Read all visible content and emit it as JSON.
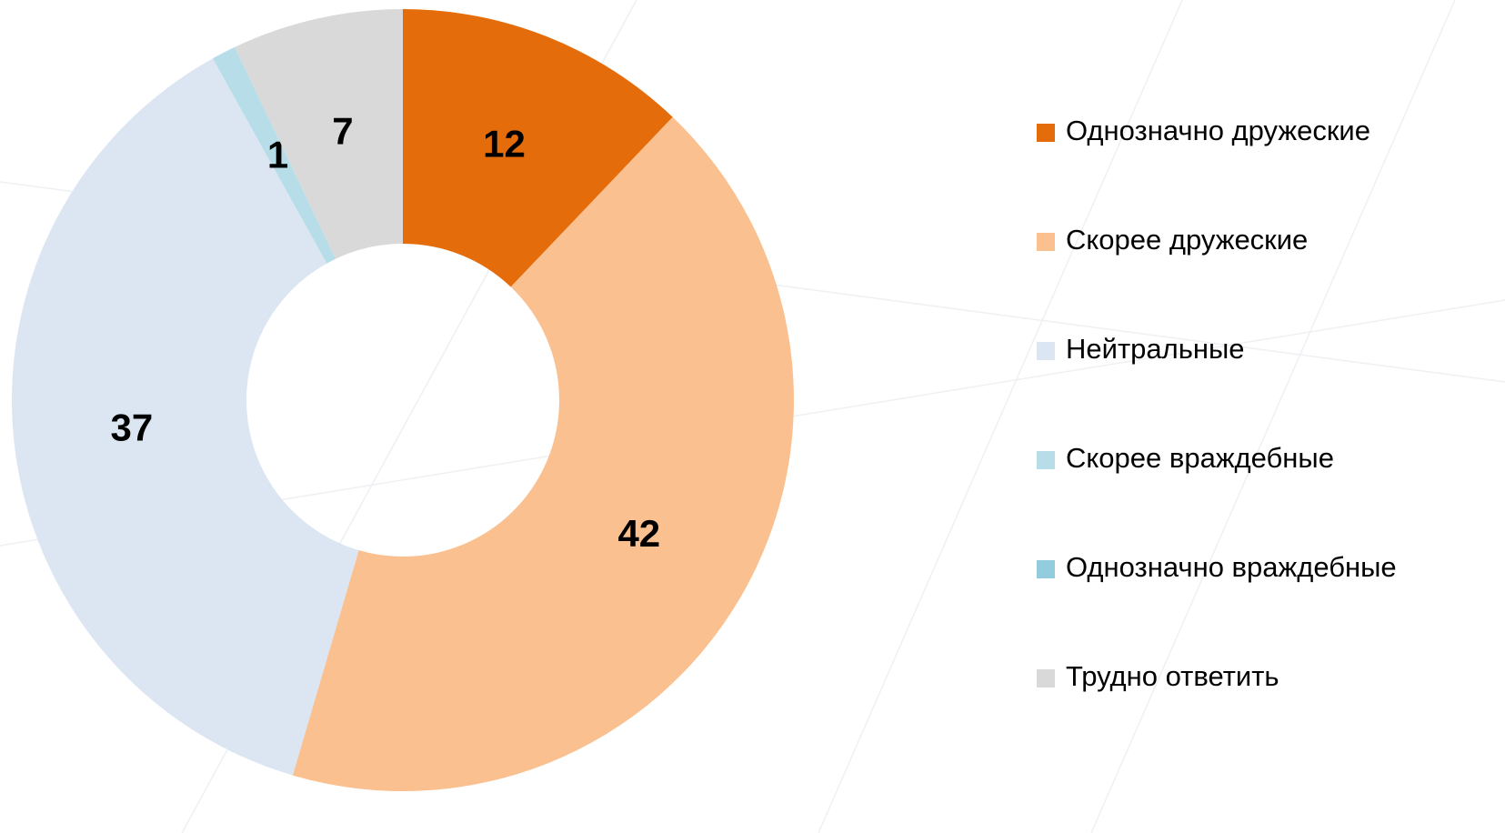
{
  "chart_data": {
    "type": "donut",
    "categories": [
      "Однозначно дружеские",
      "Скорее  дружеские",
      "Нейтральные",
      "Скорее враждебные",
      "Однозначно враждебные",
      "Трудно ответить"
    ],
    "values": [
      12,
      42,
      37,
      1,
      0,
      7
    ],
    "colors": [
      "#e46c0a",
      "#fac090",
      "#dce6f2",
      "#b7dee8",
      "#93cddd",
      "#d9d9d9"
    ],
    "legend": "right"
  }
}
